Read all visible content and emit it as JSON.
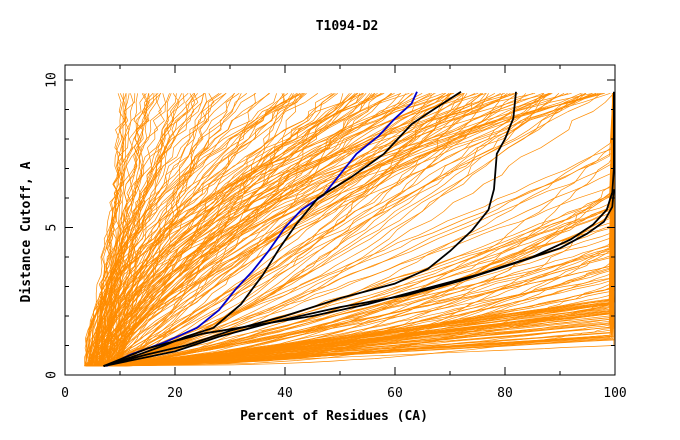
{
  "chart_data": {
    "type": "line",
    "title": "T1094-D2",
    "xlabel": "Percent of Residues (CA)",
    "ylabel": "Distance Cutoff, A",
    "xlim": [
      0,
      100
    ],
    "ylim": [
      0,
      10
    ],
    "x_ticks": [
      0,
      20,
      40,
      60,
      80,
      100
    ],
    "y_ticks": [
      0,
      5,
      10
    ],
    "x_tick_labels": [
      "0",
      "20",
      "40",
      "60",
      "80",
      "100"
    ],
    "y_tick_labels": [
      "0",
      "5",
      "10"
    ],
    "grid": false,
    "colors": {
      "background_series": "#ff8c00",
      "blue": "#0000cc",
      "black": "#000000"
    },
    "highlighted_series": [
      {
        "color": "#0000cc",
        "points": [
          [
            7.5,
            0.3
          ],
          [
            12,
            0.7
          ],
          [
            18,
            1.1
          ],
          [
            24,
            1.6
          ],
          [
            28,
            2.2
          ],
          [
            31,
            2.9
          ],
          [
            34,
            3.5
          ],
          [
            37,
            4.2
          ],
          [
            40,
            5.0
          ],
          [
            43,
            5.6
          ],
          [
            47,
            6.1
          ],
          [
            50,
            6.8
          ],
          [
            53,
            7.5
          ],
          [
            57,
            8.1
          ],
          [
            60,
            8.7
          ],
          [
            63,
            9.2
          ],
          [
            64,
            9.6
          ]
        ]
      },
      {
        "color": "#000000",
        "points": [
          [
            7,
            0.3
          ],
          [
            12,
            0.6
          ],
          [
            18,
            1.0
          ],
          [
            22,
            1.3
          ],
          [
            27,
            1.6
          ],
          [
            32,
            2.4
          ],
          [
            36,
            3.4
          ],
          [
            39,
            4.3
          ],
          [
            42,
            5.1
          ],
          [
            46,
            6.0
          ],
          [
            52,
            6.7
          ],
          [
            58,
            7.5
          ],
          [
            63,
            8.5
          ],
          [
            67,
            9.0
          ],
          [
            72,
            9.6
          ]
        ]
      },
      {
        "color": "#000000",
        "points": [
          [
            7,
            0.3
          ],
          [
            15,
            0.7
          ],
          [
            22,
            1.0
          ],
          [
            30,
            1.5
          ],
          [
            40,
            2.0
          ],
          [
            50,
            2.6
          ],
          [
            60,
            3.1
          ],
          [
            66,
            3.6
          ],
          [
            70,
            4.2
          ],
          [
            74,
            4.9
          ],
          [
            77,
            5.6
          ],
          [
            78,
            6.3
          ],
          [
            78.5,
            7.5
          ],
          [
            80,
            8.0
          ],
          [
            81.5,
            8.7
          ],
          [
            82,
            9.6
          ]
        ]
      },
      {
        "color": "#000000",
        "points": [
          [
            7,
            0.3
          ],
          [
            15,
            0.9
          ],
          [
            25,
            1.4
          ],
          [
            35,
            1.7
          ],
          [
            45,
            2.0
          ],
          [
            55,
            2.4
          ],
          [
            65,
            2.9
          ],
          [
            75,
            3.4
          ],
          [
            85,
            4.0
          ],
          [
            92,
            4.6
          ],
          [
            96,
            5.1
          ],
          [
            98.5,
            5.6
          ],
          [
            99.5,
            6.2
          ],
          [
            99.8,
            7.0
          ],
          [
            99.8,
            8.0
          ],
          [
            99.8,
            9.6
          ]
        ]
      },
      {
        "color": "#000000",
        "points": [
          [
            7,
            0.3
          ],
          [
            20,
            0.8
          ],
          [
            28,
            1.3
          ],
          [
            38,
            1.8
          ],
          [
            50,
            2.3
          ],
          [
            62,
            2.7
          ],
          [
            72,
            3.2
          ],
          [
            82,
            3.8
          ],
          [
            90,
            4.3
          ],
          [
            95,
            4.8
          ],
          [
            98,
            5.2
          ],
          [
            99.5,
            5.7
          ],
          [
            99.8,
            6.3
          ]
        ]
      }
    ]
  }
}
